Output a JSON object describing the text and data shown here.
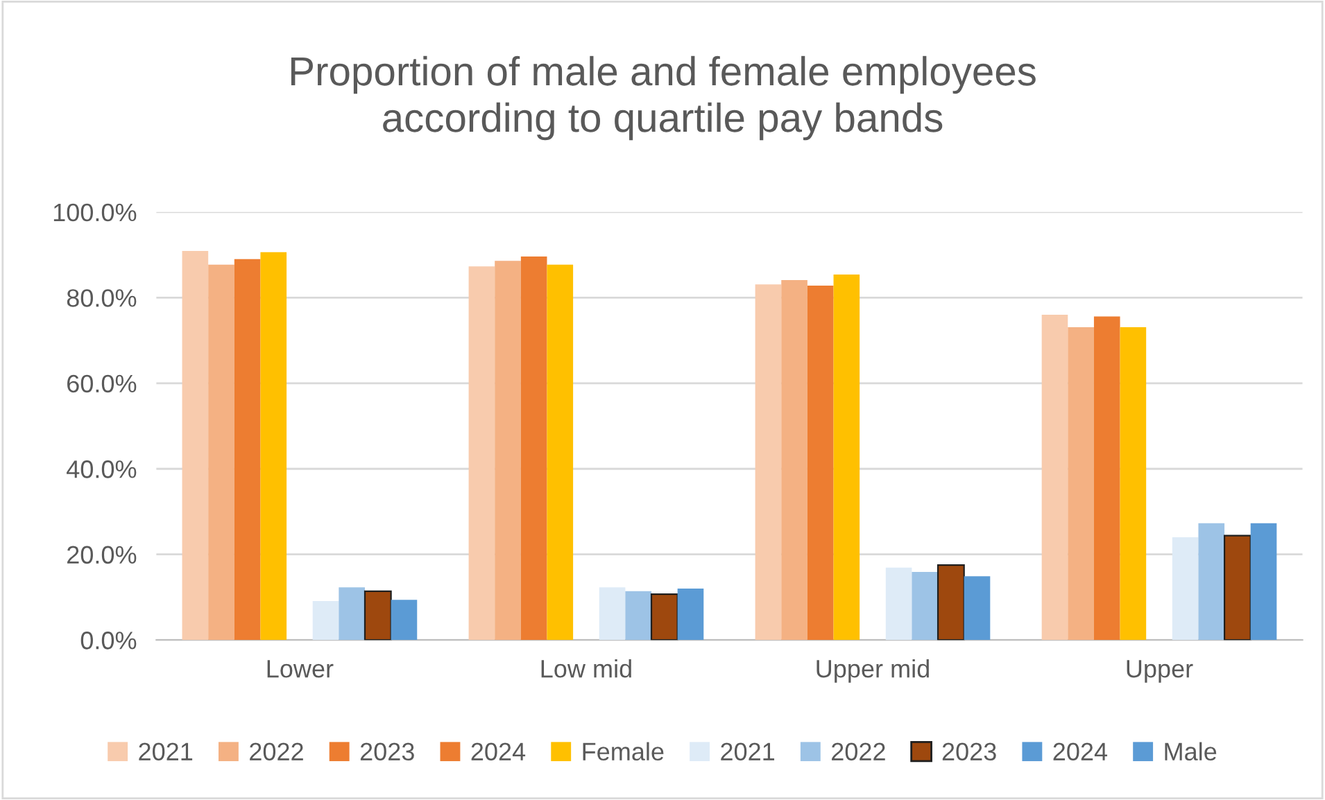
{
  "chart_data": {
    "type": "bar",
    "title": "Proportion of male and female employees\naccording to quartile pay bands",
    "categories": [
      "Lower",
      "Low mid",
      "Upper mid",
      "Upper"
    ],
    "series": [
      {
        "name": "2021",
        "color": "#f8cbad",
        "values": [
          90.9,
          87.3,
          83.1,
          76.0
        ]
      },
      {
        "name": "2022",
        "color": "#f4b183",
        "values": [
          87.7,
          88.6,
          84.1,
          73.1
        ]
      },
      {
        "name": "2023",
        "color": "#ed7d31",
        "values": [
          89.0,
          89.6,
          82.8,
          75.6
        ]
      },
      {
        "name": "2024",
        "color": "#ed7d31",
        "values": [
          null,
          null,
          null,
          null
        ]
      },
      {
        "name": "Female",
        "color": "#ffc000",
        "values": [
          90.6,
          87.7,
          85.4,
          73.1
        ]
      },
      {
        "name": "2021",
        "color": "#deebf7",
        "values": [
          9.1,
          12.3,
          16.9,
          24.0
        ]
      },
      {
        "name": "2022",
        "color": "#9dc3e6",
        "values": [
          12.3,
          11.4,
          15.9,
          27.3
        ]
      },
      {
        "name": "2023",
        "color": "#9e480e",
        "values": [
          11.4,
          10.7,
          17.5,
          24.4
        ]
      },
      {
        "name": "2024",
        "color": "#5b9bd5",
        "values": [
          null,
          null,
          null,
          null
        ]
      },
      {
        "name": "Male",
        "color": "#5b9bd5",
        "values": [
          9.4,
          12.0,
          14.9,
          27.3
        ]
      }
    ],
    "ylim": [
      0,
      100
    ],
    "yticks": [
      {
        "value": 0,
        "label": "0.0%"
      },
      {
        "value": 20,
        "label": "20.0%"
      },
      {
        "value": 40,
        "label": "40.0%"
      },
      {
        "value": 60,
        "label": "60.0%"
      },
      {
        "value": 80,
        "label": "80.0%"
      },
      {
        "value": 100,
        "label": "100.0%"
      }
    ],
    "grid": "y",
    "legend": "bottom"
  }
}
